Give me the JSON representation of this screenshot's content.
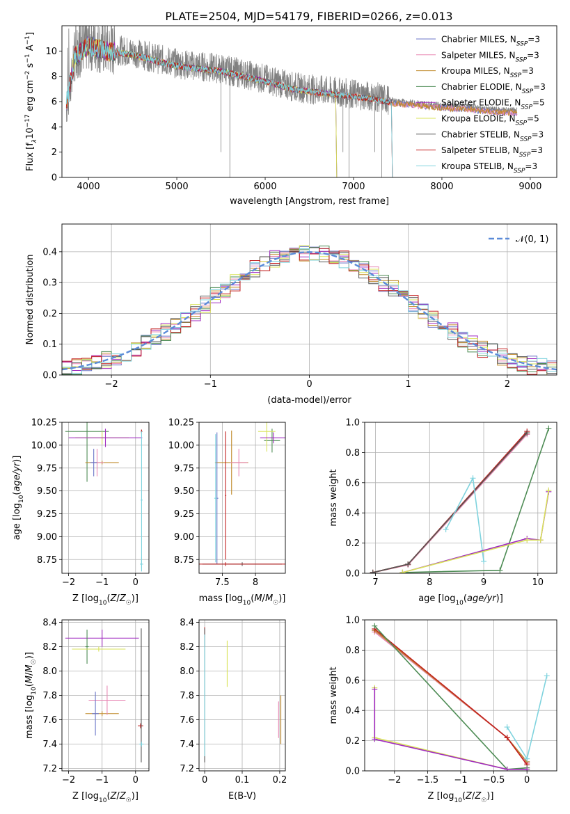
{
  "figure_title": "PLATE=2504, MJD=54179, FIBERID=0266, z=0.013",
  "colors": {
    "Chabrier MILES": "#6b76c8",
    "Salpeter MILES": "#e887b4",
    "Kroupa MILES": "#c08a2a",
    "Chabrier ELODIE": "#4e8c55",
    "Salpeter ELODIE": "#a02bc0",
    "Kroupa ELODIE": "#d9e35a",
    "Chabrier STELIB": "#555555",
    "Salpeter STELIB": "#c21f1f",
    "Kroupa STELIB": "#7fd3de",
    "data": "#808080",
    "normal_curve": "#5b8bd8",
    "orange_fit": "#e8743b"
  },
  "chart_data": [
    {
      "id": "spectrum",
      "type": "line",
      "xlabel": "wavelength [Angstrom, rest frame]",
      "ylabel": "Flux [f_λ10^-17 erg cm^-2 s^-1 A^-1]",
      "xlim": [
        3700,
        9300
      ],
      "ylim": [
        0,
        12
      ],
      "xticks": [
        4000,
        5000,
        6000,
        7000,
        8000,
        9000
      ],
      "yticks": [
        0,
        2,
        4,
        6,
        8,
        10
      ],
      "grid": false,
      "legend_position": "top-right",
      "legend": [
        {
          "name": "Chabrier MILES",
          "nssp": "3"
        },
        {
          "name": "Salpeter MILES",
          "nssp": "3"
        },
        {
          "name": "Kroupa MILES",
          "nssp": "3"
        },
        {
          "name": "Chabrier ELODIE",
          "nssp": "3"
        },
        {
          "name": "Salpeter ELODIE",
          "nssp": "5"
        },
        {
          "name": "Kroupa ELODIE",
          "nssp": "5"
        },
        {
          "name": "Chabrier STELIB",
          "nssp": "3"
        },
        {
          "name": "Salpeter STELIB",
          "nssp": "3"
        },
        {
          "name": "Kroupa STELIB",
          "nssp": "3"
        }
      ],
      "continuum": {
        "x": [
          3750,
          3850,
          4000,
          4200,
          4500,
          5000,
          5500,
          6000,
          6300,
          6500,
          7000,
          7300,
          7500,
          7700,
          8000,
          8300,
          8500,
          8800
        ],
        "y": [
          6.0,
          9.8,
          10.6,
          10.2,
          9.9,
          9.0,
          8.6,
          7.8,
          7.2,
          7.0,
          6.6,
          6.3,
          6.0,
          5.9,
          5.7,
          5.6,
          5.4,
          5.3
        ]
      },
      "data_end_x": 8850,
      "model_cutoffs": {
        "ELODIE": 6800,
        "STELIB": 7430
      }
    },
    {
      "id": "residuals",
      "type": "histogram",
      "xlabel": "(data-model)/error",
      "ylabel": "Normed distribution",
      "xlim": [
        -2.5,
        2.5
      ],
      "ylim": [
        0,
        0.49
      ],
      "xticks": [
        -2,
        -1,
        0,
        1,
        2
      ],
      "yticks": [
        0.0,
        0.1,
        0.2,
        0.3,
        0.4
      ],
      "grid": true,
      "legend_position": "top-right",
      "legend_label": "𝒩(0, 1)",
      "bin_width": 0.1
    },
    {
      "id": "age_vs_Z",
      "type": "errorbar",
      "xlabel": "Z [log10(Z/Z☉)]",
      "ylabel": "age  [log10(age/yr)]",
      "xlim": [
        -2.2,
        0.4
      ],
      "ylim": [
        8.6,
        10.25
      ],
      "xticks": [
        -2,
        -1,
        0
      ],
      "yticks": [
        8.75,
        9.0,
        9.25,
        9.5,
        9.75,
        10.0,
        10.25
      ],
      "grid": true,
      "points": [
        {
          "model": "Chabrier ELODIE",
          "x": -1.45,
          "xerr": 0.65,
          "y": 10.15,
          "yerr": 0.55
        },
        {
          "model": "Kroupa ELODIE",
          "x": -1.0,
          "xerr": 0.8,
          "y": 10.08,
          "yerr": 0.07
        },
        {
          "model": "Salpeter ELODIE",
          "x": -0.9,
          "xerr": 1.1,
          "y": 10.08,
          "yerr": 0.1
        },
        {
          "model": "Kroupa MILES",
          "x": -1.0,
          "xerr": 0.5,
          "y": 9.81,
          "yerr": 0.02
        },
        {
          "model": "Salpeter MILES",
          "x": -1.15,
          "xerr": 0.2,
          "y": 9.81,
          "yerr": 0.15
        },
        {
          "model": "Chabrier MILES",
          "x": -1.25,
          "xerr": 0.1,
          "y": 9.81,
          "yerr": 0.15
        },
        {
          "model": "Chabrier STELIB",
          "x": 0.18,
          "xerr": 0.02,
          "y": 10.15,
          "yerr": 0.02
        },
        {
          "model": "Salpeter STELIB",
          "x": 0.18,
          "xerr": 0.02,
          "y": 10.15,
          "yerr": 0.02
        },
        {
          "model": "Kroupa STELIB",
          "x": 0.18,
          "xerr": 0.03,
          "y": 9.4,
          "yerr": 0.75
        },
        {
          "model": "Kroupa STELIB",
          "x": 0.18,
          "xerr": 0.05,
          "y": 8.7,
          "yerr": 0.08
        }
      ]
    },
    {
      "id": "age_vs_mass",
      "type": "errorbar",
      "xlabel": "mass [log10(M/M☉)]",
      "ylabel": "",
      "xlim": [
        7.15,
        8.45
      ],
      "ylim": [
        8.6,
        10.25
      ],
      "xticks": [
        7.5,
        8.0
      ],
      "yticks": [
        8.75,
        9.0,
        9.25,
        9.5,
        9.75,
        10.0,
        10.25
      ],
      "grid": true,
      "points": [
        {
          "model": "Chabrier ELODIE",
          "x": 8.25,
          "xerr": 0.12,
          "y": 10.05,
          "yerr": 0.13
        },
        {
          "model": "Kroupa ELODIE",
          "x": 8.17,
          "xerr": 0.13,
          "y": 10.15,
          "yerr": 0.22
        },
        {
          "model": "Salpeter ELODIE",
          "x": 8.27,
          "xerr": 0.2,
          "y": 10.08,
          "yerr": 0.06
        },
        {
          "model": "Kroupa MILES",
          "x": 7.64,
          "xerr": 0.25,
          "y": 9.81,
          "yerr": 0.35
        },
        {
          "model": "Salpeter MILES",
          "x": 7.75,
          "xerr": 0.13,
          "y": 9.81,
          "yerr": 0.15
        },
        {
          "model": "Chabrier MILES",
          "x": 7.42,
          "xerr": 0.02,
          "y": 9.42,
          "yerr": 0.72
        },
        {
          "model": "Chabrier STELIB",
          "x": 7.8,
          "xerr": 0.6,
          "y": 8.7,
          "yerr": 0.02
        },
        {
          "model": "Salpeter STELIB",
          "x": 7.55,
          "xerr": 0.9,
          "y": 8.7,
          "yerr": 0.02
        },
        {
          "model": "Salpeter STELIB",
          "x": 7.55,
          "xerr": 0.01,
          "y": 9.45,
          "yerr": 0.7
        },
        {
          "model": "Kroupa STELIB",
          "x": 7.4,
          "xerr": 0.02,
          "y": 9.42,
          "yerr": 0.7
        }
      ]
    },
    {
      "id": "mass_weight_vs_age",
      "type": "line",
      "xlabel": "age  [log10(age/yr)]",
      "ylabel": "mass weight",
      "xlim": [
        6.8,
        10.35
      ],
      "ylim": [
        0,
        1
      ],
      "xticks": [
        7,
        8,
        9,
        10
      ],
      "yticks": [
        0.0,
        0.2,
        0.4,
        0.6,
        0.8,
        1.0
      ],
      "grid": true,
      "series": [
        {
          "model": "Chabrier MILES",
          "x": [
            6.95,
            7.6,
            9.8
          ],
          "y": [
            0.005,
            0.06,
            0.93
          ]
        },
        {
          "model": "Salpeter MILES",
          "x": [
            6.95,
            7.6,
            9.8
          ],
          "y": [
            0.005,
            0.055,
            0.92
          ]
        },
        {
          "model": "Kroupa MILES",
          "x": [
            6.95,
            7.6,
            9.8
          ],
          "y": [
            0.005,
            0.06,
            0.93
          ]
        },
        {
          "model": "Salpeter STELIB",
          "x": [
            6.95,
            7.6,
            9.8
          ],
          "y": [
            0.005,
            0.06,
            0.94
          ]
        },
        {
          "model": "Chabrier STELIB",
          "x": [
            6.95,
            7.6,
            9.8
          ],
          "y": [
            0.005,
            0.06,
            0.93
          ]
        },
        {
          "model": "Kroupa STELIB",
          "x": [
            8.3,
            8.8,
            9.0
          ],
          "y": [
            0.29,
            0.63,
            0.08
          ]
        },
        {
          "model": "Chabrier ELODIE",
          "x": [
            7.5,
            9.3,
            10.2
          ],
          "y": [
            0.005,
            0.02,
            0.96
          ]
        },
        {
          "model": "Salpeter ELODIE",
          "x": [
            7.5,
            9.8,
            10.05,
            10.2
          ],
          "y": [
            0.005,
            0.23,
            0.22,
            0.54
          ]
        },
        {
          "model": "Kroupa ELODIE",
          "x": [
            7.5,
            9.8,
            10.05,
            10.2
          ],
          "y": [
            0.005,
            0.22,
            0.22,
            0.55
          ]
        }
      ]
    },
    {
      "id": "mass_vs_Z",
      "type": "errorbar",
      "xlabel": "Z [log10(Z/Z☉)]",
      "ylabel": "mass [log10(M/M☉)]",
      "xlim": [
        -2.2,
        0.4
      ],
      "ylim": [
        7.18,
        8.42
      ],
      "xticks": [
        -2,
        -1,
        0
      ],
      "yticks": [
        7.2,
        7.4,
        7.6,
        7.8,
        8.0,
        8.2,
        8.4
      ],
      "grid": true,
      "points": [
        {
          "model": "Salpeter ELODIE",
          "x": -1.0,
          "xerr": 1.1,
          "y": 8.27,
          "yerr": 0.07
        },
        {
          "model": "Chabrier ELODIE",
          "x": -1.45,
          "xerr": 0.05,
          "y": 8.2,
          "yerr": 0.14
        },
        {
          "model": "Kroupa ELODIE",
          "x": -1.1,
          "xerr": 0.8,
          "y": 8.18,
          "yerr": 0.02
        },
        {
          "model": "Kroupa MILES",
          "x": -1.0,
          "xerr": 0.5,
          "y": 7.65,
          "yerr": 0.02
        },
        {
          "model": "Salpeter MILES",
          "x": -0.85,
          "xerr": 0.55,
          "y": 7.76,
          "yerr": 0.12
        },
        {
          "model": "Chabrier MILES",
          "x": -1.2,
          "xerr": 0.1,
          "y": 7.65,
          "yerr": 0.18
        },
        {
          "model": "Salpeter STELIB",
          "x": 0.15,
          "xerr": 0.08,
          "y": 7.55,
          "yerr": 0.02
        },
        {
          "model": "Chabrier STELIB",
          "x": 0.17,
          "xerr": 0.02,
          "y": 7.8,
          "yerr": 0.55
        },
        {
          "model": "Kroupa STELIB",
          "x": 0.18,
          "xerr": 0.07,
          "y": 7.4,
          "yerr": 0.02
        }
      ]
    },
    {
      "id": "mass_vs_ebv",
      "type": "errorbar",
      "xlabel": "E(B-V)",
      "ylabel": "",
      "xlim": [
        -0.015,
        0.215
      ],
      "ylim": [
        7.18,
        8.42
      ],
      "xticks": [
        0.0,
        0.1,
        0.2
      ],
      "yticks": [
        7.2,
        7.4,
        7.6,
        7.8,
        8.0,
        8.2,
        8.4
      ],
      "grid": true,
      "points": [
        {
          "model": "Salpeter STELIB",
          "x": 0.0,
          "xerr": 0.001,
          "y": 8.28,
          "yerr": 0.08
        },
        {
          "model": "Chabrier STELIB",
          "x": 0.0,
          "xerr": 0.001,
          "y": 7.8,
          "yerr": 0.55
        },
        {
          "model": "Kroupa ELODIE",
          "x": 0.06,
          "xerr": 0.001,
          "y": 8.06,
          "yerr": 0.19
        },
        {
          "model": "Salpeter MILES",
          "x": 0.197,
          "xerr": 0.001,
          "y": 7.6,
          "yerr": 0.15
        },
        {
          "model": "Kroupa MILES",
          "x": 0.203,
          "xerr": 0.001,
          "y": 7.6,
          "yerr": 0.2
        },
        {
          "model": "Kroupa STELIB",
          "x": 0.0,
          "xerr": 0.001,
          "y": 7.8,
          "yerr": 0.5
        }
      ]
    },
    {
      "id": "mass_weight_vs_Z",
      "type": "line",
      "xlabel": "Z [log10(Z/Z☉)]",
      "ylabel": "mass weight",
      "xlim": [
        -2.45,
        0.45
      ],
      "ylim": [
        0,
        1
      ],
      "xticks": [
        -2.0,
        -1.5,
        -1.0,
        -0.5,
        0.0
      ],
      "yticks": [
        0.0,
        0.2,
        0.4,
        0.6,
        0.8,
        1.0
      ],
      "grid": true,
      "series": [
        {
          "model": "Chabrier MILES",
          "x": [
            -2.3,
            -0.3,
            0.0
          ],
          "y": [
            0.93,
            0.22,
            0.06
          ]
        },
        {
          "model": "Salpeter MILES",
          "x": [
            -2.3,
            -0.3,
            0.0
          ],
          "y": [
            0.92,
            0.22,
            0.05
          ]
        },
        {
          "model": "Kroupa MILES",
          "x": [
            -2.3,
            -0.3,
            0.0
          ],
          "y": [
            0.93,
            0.22,
            0.06
          ]
        },
        {
          "model": "Salpeter STELIB",
          "x": [
            -2.3,
            -0.3,
            0.0
          ],
          "y": [
            0.94,
            0.22,
            0.04
          ]
        },
        {
          "model": "Chabrier ELODIE",
          "x": [
            -2.3,
            -0.3,
            0.0
          ],
          "y": [
            0.96,
            0.01,
            0.02
          ]
        },
        {
          "model": "Kroupa STELIB",
          "x": [
            -0.3,
            0.0,
            0.3
          ],
          "y": [
            0.29,
            0.08,
            0.63
          ]
        },
        {
          "model": "Kroupa ELODIE",
          "x": [
            -2.3,
            -2.3,
            -0.3,
            0.0
          ],
          "y": [
            0.55,
            0.22,
            0.01,
            0.01
          ]
        },
        {
          "model": "Salpeter ELODIE",
          "x": [
            -2.3,
            -2.3,
            -0.3,
            0.0
          ],
          "y": [
            0.54,
            0.21,
            0.01,
            0.01
          ]
        }
      ]
    }
  ]
}
